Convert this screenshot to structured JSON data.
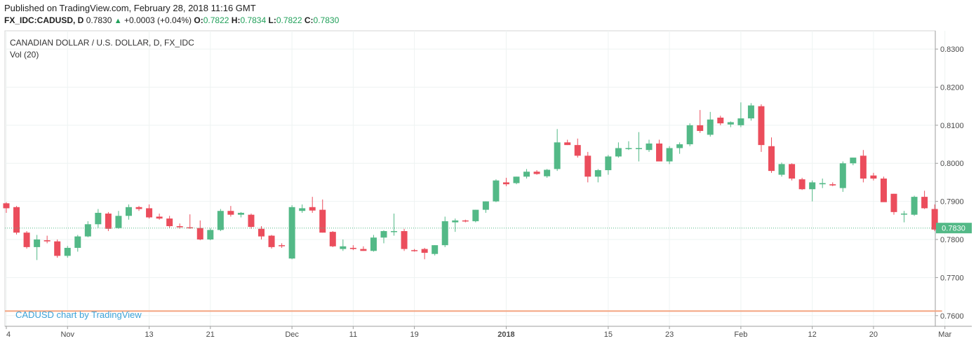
{
  "header": {
    "published": "Published on TradingView.com, February 28, 2018 11:16 GMT",
    "symbol": "FX_IDC:CADUSD, D",
    "last": "0.7830",
    "change": "+0.0003 (+0.04%)",
    "o_label": "O:",
    "o_val": "0.7822",
    "h_label": "H:",
    "h_val": "0.7834",
    "l_label": "L:",
    "l_val": "0.7822",
    "c_label": "C:",
    "c_val": "0.7830"
  },
  "legend": {
    "title": "CANADIAN DOLLAR / U.S. DOLLAR, D, FX_IDC",
    "volume": "Vol (20)"
  },
  "watermark": "CADUSD chart by TradingView",
  "price_tag": "0.7830",
  "colors": {
    "up": "#53b987",
    "down": "#eb4d5c",
    "grid": "#eef3f2",
    "volume_ma": "#f4a582",
    "watermark": "#3ea3d8",
    "last_line": "#53b987"
  },
  "chart_data": {
    "type": "candlestick",
    "title": "CANADIAN DOLLAR / U.S. DOLLAR, D, FX_IDC",
    "y_ticks": [
      "0.8300",
      "0.8200",
      "0.8100",
      "0.8000",
      "0.7900",
      "0.7800",
      "0.7700",
      "0.7600"
    ],
    "ylim": [
      0.7572,
      0.8348
    ],
    "x_ticks": [
      {
        "label": "4",
        "bar": 0,
        "bold": false
      },
      {
        "label": "Nov",
        "bar": 6,
        "bold": false
      },
      {
        "label": "13",
        "bar": 14,
        "bold": false
      },
      {
        "label": "21",
        "bar": 20,
        "bold": false
      },
      {
        "label": "Dec",
        "bar": 28,
        "bold": false
      },
      {
        "label": "11",
        "bar": 34,
        "bold": false
      },
      {
        "label": "19",
        "bar": 40,
        "bold": false
      },
      {
        "label": "2018",
        "bar": 49,
        "bold": true
      },
      {
        "label": "15",
        "bar": 59,
        "bold": false
      },
      {
        "label": "23",
        "bar": 65,
        "bold": false
      },
      {
        "label": "Feb",
        "bar": 72,
        "bold": false
      },
      {
        "label": "12",
        "bar": 79,
        "bold": false
      },
      {
        "label": "20",
        "bar": 85,
        "bold": false
      },
      {
        "label": "Mar",
        "bar": 92,
        "bold": false
      }
    ],
    "ohlc": [
      [
        0.7895,
        0.7898,
        0.787,
        0.7882
      ],
      [
        0.7885,
        0.7888,
        0.7813,
        0.7818
      ],
      [
        0.7818,
        0.7822,
        0.7776,
        0.778
      ],
      [
        0.778,
        0.7812,
        0.7746,
        0.78
      ],
      [
        0.7798,
        0.781,
        0.779,
        0.7795
      ],
      [
        0.7795,
        0.78,
        0.7752,
        0.7757
      ],
      [
        0.7757,
        0.7783,
        0.7752,
        0.7778
      ],
      [
        0.7778,
        0.7812,
        0.7768,
        0.7808
      ],
      [
        0.7808,
        0.7848,
        0.7806,
        0.784
      ],
      [
        0.784,
        0.788,
        0.783,
        0.787
      ],
      [
        0.7868,
        0.7872,
        0.7822,
        0.7828
      ],
      [
        0.783,
        0.7875,
        0.7828,
        0.7862
      ],
      [
        0.7862,
        0.7892,
        0.7852,
        0.7885
      ],
      [
        0.7885,
        0.7888,
        0.7875,
        0.788
      ],
      [
        0.7882,
        0.7892,
        0.7855,
        0.7858
      ],
      [
        0.786,
        0.7868,
        0.7852,
        0.7855
      ],
      [
        0.7855,
        0.7862,
        0.783,
        0.7835
      ],
      [
        0.7835,
        0.7842,
        0.7828,
        0.7832
      ],
      [
        0.7832,
        0.7866,
        0.7828,
        0.783
      ],
      [
        0.783,
        0.785,
        0.7798,
        0.78
      ],
      [
        0.78,
        0.783,
        0.7798,
        0.7825
      ],
      [
        0.7825,
        0.788,
        0.7822,
        0.7875
      ],
      [
        0.7875,
        0.7888,
        0.786,
        0.7865
      ],
      [
        0.7865,
        0.7872,
        0.7858,
        0.787
      ],
      [
        0.7865,
        0.7868,
        0.7828,
        0.7833
      ],
      [
        0.7828,
        0.7835,
        0.78,
        0.7808
      ],
      [
        0.781,
        0.7812,
        0.7776,
        0.778
      ],
      [
        0.7785,
        0.779,
        0.7778,
        0.7784
      ],
      [
        0.775,
        0.789,
        0.7748,
        0.7885
      ],
      [
        0.7875,
        0.7892,
        0.787,
        0.7882
      ],
      [
        0.7885,
        0.7912,
        0.787,
        0.7876
      ],
      [
        0.7878,
        0.7905,
        0.7818,
        0.7818
      ],
      [
        0.782,
        0.7822,
        0.778,
        0.7782
      ],
      [
        0.7775,
        0.78,
        0.777,
        0.7782
      ],
      [
        0.7778,
        0.7785,
        0.7772,
        0.7775
      ],
      [
        0.7775,
        0.7782,
        0.777,
        0.777
      ],
      [
        0.777,
        0.7812,
        0.7768,
        0.7805
      ],
      [
        0.7805,
        0.7824,
        0.779,
        0.7822
      ],
      [
        0.7822,
        0.7868,
        0.781,
        0.7822
      ],
      [
        0.7822,
        0.7828,
        0.777,
        0.7775
      ],
      [
        0.7772,
        0.7775,
        0.7768,
        0.777
      ],
      [
        0.7775,
        0.7778,
        0.7748,
        0.7765
      ],
      [
        0.7762,
        0.7785,
        0.7758,
        0.7785
      ],
      [
        0.7785,
        0.786,
        0.778,
        0.7848
      ],
      [
        0.7845,
        0.7855,
        0.782,
        0.785
      ],
      [
        0.785,
        0.7852,
        0.7845,
        0.7848
      ],
      [
        0.7848,
        0.7878,
        0.7845,
        0.7878
      ],
      [
        0.7878,
        0.79,
        0.787,
        0.79
      ],
      [
        0.79,
        0.7958,
        0.7898,
        0.7955
      ],
      [
        0.795,
        0.7962,
        0.794,
        0.7945
      ],
      [
        0.7948,
        0.7965,
        0.7945,
        0.7965
      ],
      [
        0.7965,
        0.7985,
        0.796,
        0.7978
      ],
      [
        0.7978,
        0.7982,
        0.797,
        0.7972
      ],
      [
        0.7966,
        0.7985,
        0.7962,
        0.7983
      ],
      [
        0.7985,
        0.809,
        0.798,
        0.8055
      ],
      [
        0.8055,
        0.8062,
        0.8048,
        0.8048
      ],
      [
        0.8048,
        0.8065,
        0.8015,
        0.802
      ],
      [
        0.802,
        0.803,
        0.795,
        0.7965
      ],
      [
        0.7965,
        0.7985,
        0.795,
        0.7982
      ],
      [
        0.7982,
        0.8022,
        0.797,
        0.8018
      ],
      [
        0.8018,
        0.8055,
        0.8015,
        0.804
      ],
      [
        0.804,
        0.8058,
        0.8035,
        0.804
      ],
      [
        0.804,
        0.8082,
        0.8005,
        0.804
      ],
      [
        0.8035,
        0.8062,
        0.803,
        0.8052
      ],
      [
        0.8052,
        0.8062,
        0.801,
        0.8005
      ],
      [
        0.8005,
        0.8045,
        0.7998,
        0.804
      ],
      [
        0.804,
        0.8055,
        0.8025,
        0.805
      ],
      [
        0.805,
        0.8105,
        0.8045,
        0.81
      ],
      [
        0.81,
        0.814,
        0.808,
        0.8085
      ],
      [
        0.8075,
        0.8135,
        0.807,
        0.8115
      ],
      [
        0.812,
        0.8125,
        0.81,
        0.8105
      ],
      [
        0.8102,
        0.811,
        0.8095,
        0.8108
      ],
      [
        0.81,
        0.816,
        0.8095,
        0.8118
      ],
      [
        0.8118,
        0.8158,
        0.8112,
        0.8152
      ],
      [
        0.815,
        0.8155,
        0.803,
        0.8048
      ],
      [
        0.8045,
        0.8068,
        0.7975,
        0.798
      ],
      [
        0.797,
        0.8002,
        0.7965,
        0.7998
      ],
      [
        0.7998,
        0.8,
        0.7955,
        0.796
      ],
      [
        0.7958,
        0.7962,
        0.793,
        0.7932
      ],
      [
        0.7932,
        0.7955,
        0.79,
        0.795
      ],
      [
        0.7945,
        0.796,
        0.7935,
        0.7948
      ],
      [
        0.7945,
        0.795,
        0.794,
        0.7942
      ],
      [
        0.7935,
        0.8005,
        0.7925,
        0.8
      ],
      [
        0.8,
        0.8015,
        0.7995,
        0.8015
      ],
      [
        0.802,
        0.8035,
        0.795,
        0.796
      ],
      [
        0.7968,
        0.7975,
        0.7955,
        0.796
      ],
      [
        0.796,
        0.7965,
        0.79,
        0.7898
      ],
      [
        0.792,
        0.792,
        0.7865,
        0.7872
      ],
      [
        0.7868,
        0.7875,
        0.7845,
        0.7868
      ],
      [
        0.7865,
        0.7915,
        0.7862,
        0.7912
      ],
      [
        0.7912,
        0.7928,
        0.788,
        0.7882
      ],
      [
        0.788,
        0.7892,
        0.7822,
        0.7826
      ],
      [
        0.7822,
        0.7834,
        0.7822,
        0.783
      ]
    ],
    "volume_ma_level": 0.7612,
    "last_price": 0.783
  }
}
